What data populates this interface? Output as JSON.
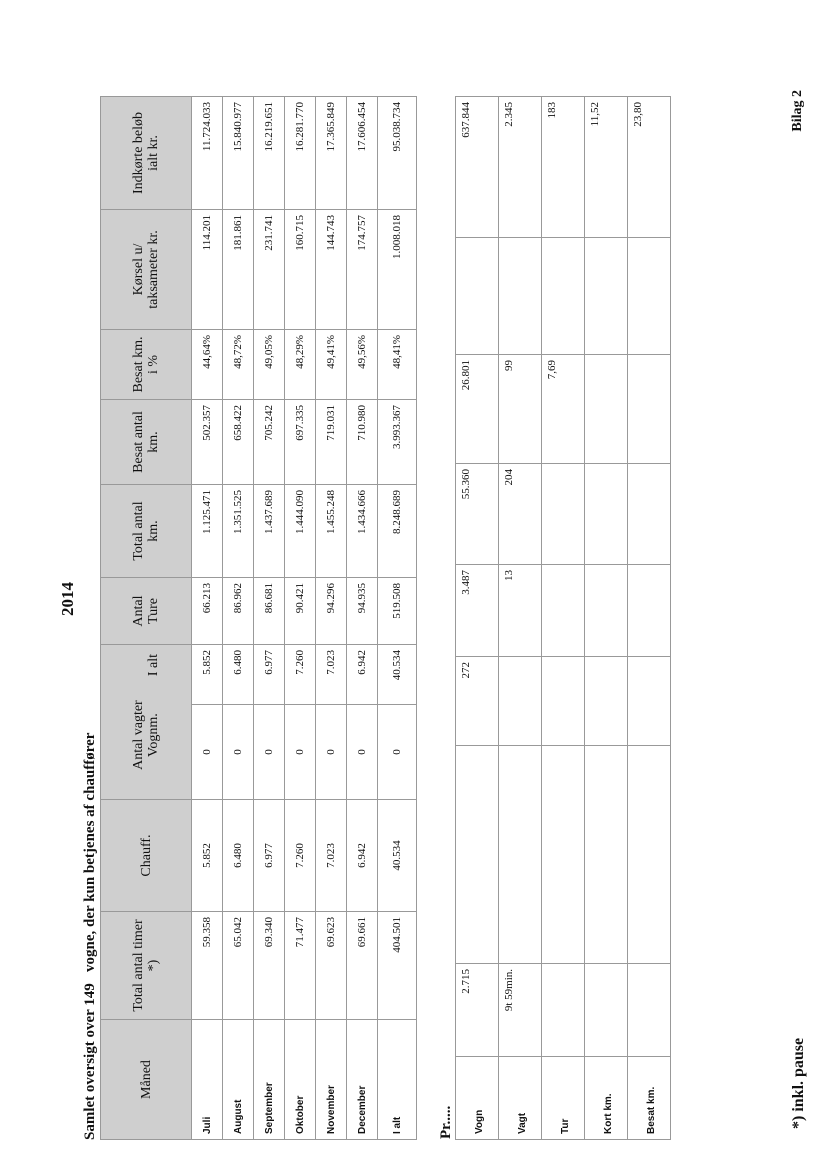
{
  "title": "Samlet oversigt over 149   vogne, der kun betjenes af chauffører",
  "year": "2014",
  "appendix": "Bilag 2",
  "footnote": "*) inkl. pause",
  "per_label": "Pr.....",
  "headers": {
    "month": "Måned",
    "total_hours": "Total antal timer *)",
    "chauff": "Chauff.",
    "shifts": "Antal vagter",
    "shifts_vogn": "Vognm.",
    "shifts_total": "I alt",
    "trips": "Antal Ture",
    "total_km": "Total antal km.",
    "occ_km": "Besat antal km.",
    "occ_pct": "Besat km. i %",
    "meter_off": "Kørsel u/ taksameter kr.",
    "revenue": "Indkørte beløb ialt kr."
  },
  "rows": [
    {
      "month": "Juli",
      "hours": "59.358",
      "chauff": "5.852",
      "vogn": "0",
      "total": "5.852",
      "trips": "66.213",
      "km": "1.125.471",
      "occ": "502.357",
      "pct": "44,64%",
      "meter": "114.201",
      "rev": "11.724.033"
    },
    {
      "month": "August",
      "hours": "65.042",
      "chauff": "6.480",
      "vogn": "0",
      "total": "6.480",
      "trips": "86.962",
      "km": "1.351.525",
      "occ": "658.422",
      "pct": "48,72%",
      "meter": "181.861",
      "rev": "15.840.977"
    },
    {
      "month": "September",
      "hours": "69.340",
      "chauff": "6.977",
      "vogn": "0",
      "total": "6.977",
      "trips": "86.681",
      "km": "1.437.689",
      "occ": "705.242",
      "pct": "49,05%",
      "meter": "231.741",
      "rev": "16.219.651"
    },
    {
      "month": "Oktober",
      "hours": "71.477",
      "chauff": "7.260",
      "vogn": "0",
      "total": "7.260",
      "trips": "90.421",
      "km": "1.444.090",
      "occ": "697.335",
      "pct": "48,29%",
      "meter": "160.715",
      "rev": "16.281.770"
    },
    {
      "month": "November",
      "hours": "69.623",
      "chauff": "7.023",
      "vogn": "0",
      "total": "7.023",
      "trips": "94.296",
      "km": "1.455.248",
      "occ": "719.031",
      "pct": "49,41%",
      "meter": "144.743",
      "rev": "17.365.849"
    },
    {
      "month": "December",
      "hours": "69.661",
      "chauff": "6.942",
      "vogn": "0",
      "total": "6.942",
      "trips": "94.935",
      "km": "1.434.666",
      "occ": "710.980",
      "pct": "49,56%",
      "meter": "174.757",
      "rev": "17.606.454"
    },
    {
      "month": "I alt",
      "hours": "404.501",
      "chauff": "40.534",
      "vogn": "0",
      "total": "40.534",
      "trips": "519.508",
      "km": "8.248.689",
      "occ": "3.993.367",
      "pct": "48,41%",
      "meter": "1.008.018",
      "rev": "95.038.734"
    }
  ],
  "per_rows": [
    {
      "label": "Vogn",
      "hours": "2.715",
      "total": "272",
      "trips": "3.487",
      "km": "55.360",
      "occ": "26.801",
      "rev": "637.844"
    },
    {
      "label": "Vagt",
      "hours": "9t  59min.",
      "total": "",
      "trips": "13",
      "km": "204",
      "occ": "99",
      "rev": "2.345"
    },
    {
      "label": "Tur",
      "hours": "",
      "total": "",
      "trips": "",
      "km": "",
      "occ": "7,69",
      "rev": "183"
    },
    {
      "label": "Kort km.",
      "hours": "",
      "total": "",
      "trips": "",
      "km": "",
      "occ": "",
      "rev": "11,52"
    },
    {
      "label": "Besat km.",
      "hours": "",
      "total": "",
      "trips": "",
      "km": "",
      "occ": "",
      "rev": "23,80"
    }
  ]
}
